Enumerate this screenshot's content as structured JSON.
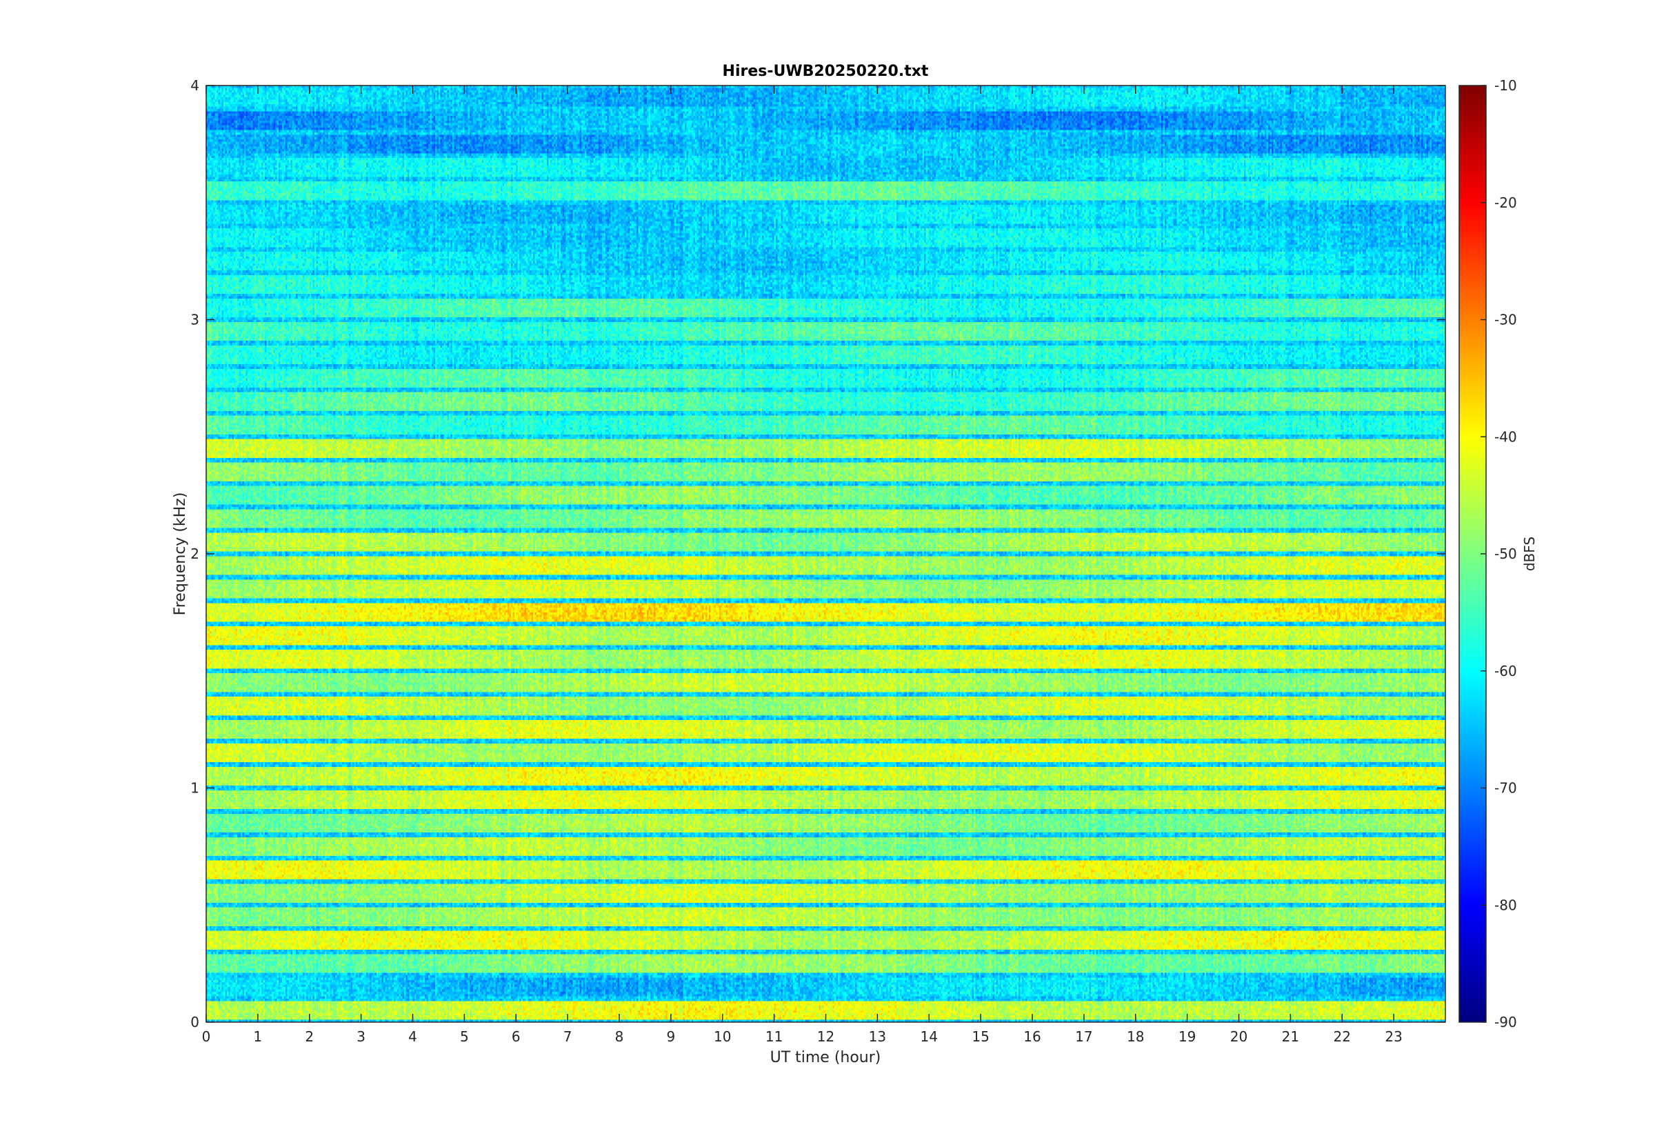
{
  "chart_data": {
    "type": "heatmap",
    "title": "Hires-UWB20250220.txt",
    "xlabel": "UT time (hour)",
    "ylabel": "Frequency (kHz)",
    "xlim": [
      0,
      24
    ],
    "ylim": [
      0,
      4
    ],
    "xticks": [
      0,
      1,
      2,
      3,
      4,
      5,
      6,
      7,
      8,
      9,
      10,
      11,
      12,
      13,
      14,
      15,
      16,
      17,
      18,
      19,
      20,
      21,
      22,
      23
    ],
    "yticks": [
      0,
      1,
      2,
      3,
      4
    ],
    "colorbar": {
      "label": "dBFS",
      "colormap": "jet",
      "clim": [
        -90,
        -10
      ],
      "ticks": [
        -90,
        -80,
        -70,
        -60,
        -50,
        -40,
        -30,
        -20,
        -10
      ]
    },
    "band_spacing_khz": 0.1,
    "band_levels_dbfs": [
      {
        "freq_khz": 0.05,
        "level": -43
      },
      {
        "freq_khz": 0.15,
        "level": -64
      },
      {
        "freq_khz": 0.25,
        "level": -50
      },
      {
        "freq_khz": 0.35,
        "level": -44
      },
      {
        "freq_khz": 0.45,
        "level": -47
      },
      {
        "freq_khz": 0.55,
        "level": -46
      },
      {
        "freq_khz": 0.65,
        "level": -44
      },
      {
        "freq_khz": 0.75,
        "level": -48
      },
      {
        "freq_khz": 0.85,
        "level": -49
      },
      {
        "freq_khz": 0.95,
        "level": -45
      },
      {
        "freq_khz": 1.05,
        "level": -43
      },
      {
        "freq_khz": 1.15,
        "level": -45
      },
      {
        "freq_khz": 1.25,
        "level": -45
      },
      {
        "freq_khz": 1.35,
        "level": -46
      },
      {
        "freq_khz": 1.45,
        "level": -47
      },
      {
        "freq_khz": 1.55,
        "level": -45
      },
      {
        "freq_khz": 1.65,
        "level": -44
      },
      {
        "freq_khz": 1.75,
        "level": -40
      },
      {
        "freq_khz": 1.85,
        "level": -46
      },
      {
        "freq_khz": 1.95,
        "level": -45
      },
      {
        "freq_khz": 2.05,
        "level": -48
      },
      {
        "freq_khz": 2.15,
        "level": -50
      },
      {
        "freq_khz": 2.25,
        "level": -51
      },
      {
        "freq_khz": 2.35,
        "level": -50
      },
      {
        "freq_khz": 2.45,
        "level": -46
      },
      {
        "freq_khz": 2.55,
        "level": -55
      },
      {
        "freq_khz": 2.65,
        "level": -54
      },
      {
        "freq_khz": 2.75,
        "level": -56
      },
      {
        "freq_khz": 2.85,
        "level": -58
      },
      {
        "freq_khz": 2.95,
        "level": -55
      },
      {
        "freq_khz": 3.05,
        "level": -56
      },
      {
        "freq_khz": 3.15,
        "level": -60
      },
      {
        "freq_khz": 3.25,
        "level": -62
      },
      {
        "freq_khz": 3.35,
        "level": -62
      },
      {
        "freq_khz": 3.45,
        "level": -63
      },
      {
        "freq_khz": 3.55,
        "level": -55
      },
      {
        "freq_khz": 3.65,
        "level": -62
      },
      {
        "freq_khz": 3.75,
        "level": -66
      },
      {
        "freq_khz": 3.85,
        "level": -67
      },
      {
        "freq_khz": 3.95,
        "level": -64
      }
    ],
    "gap_level_dbfs": -64
  }
}
